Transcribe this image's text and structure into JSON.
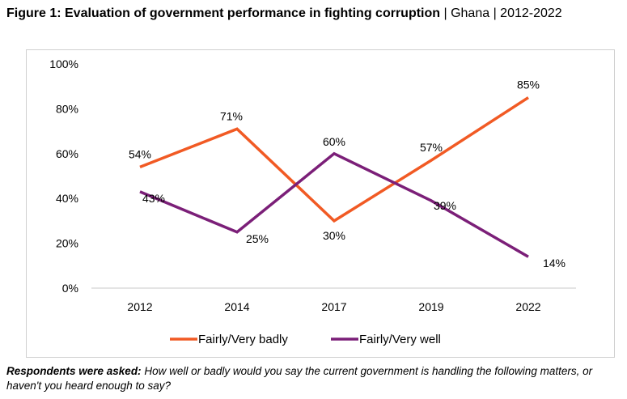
{
  "title": {
    "bold": "Figure 1: Evaluation of government performance in fighting corruption",
    "rest": " | Ghana | 2012-2022"
  },
  "note": {
    "label": "Respondents were asked:",
    "text": " How well or badly would you say the current government is handling the following matters, or haven't you heard enough to say?"
  },
  "chart_data": {
    "type": "line",
    "categories": [
      "2012",
      "2014",
      "2017",
      "2019",
      "2022"
    ],
    "yticks": [
      "0%",
      "20%",
      "40%",
      "60%",
      "80%",
      "100%"
    ],
    "ylim": [
      0,
      100
    ],
    "grid": false,
    "legend_position": "bottom",
    "series": [
      {
        "name": "Fairly/Very badly",
        "color": "#f15a24",
        "values": [
          54,
          71,
          30,
          57,
          85
        ],
        "labels": [
          "54%",
          "71%",
          "30%",
          "57%",
          "85%"
        ]
      },
      {
        "name": "Fairly/Very well",
        "color": "#7b1f78",
        "values": [
          43,
          25,
          60,
          39,
          14
        ],
        "labels": [
          "43%",
          "25%",
          "60%",
          "39%",
          "14%"
        ]
      }
    ]
  }
}
